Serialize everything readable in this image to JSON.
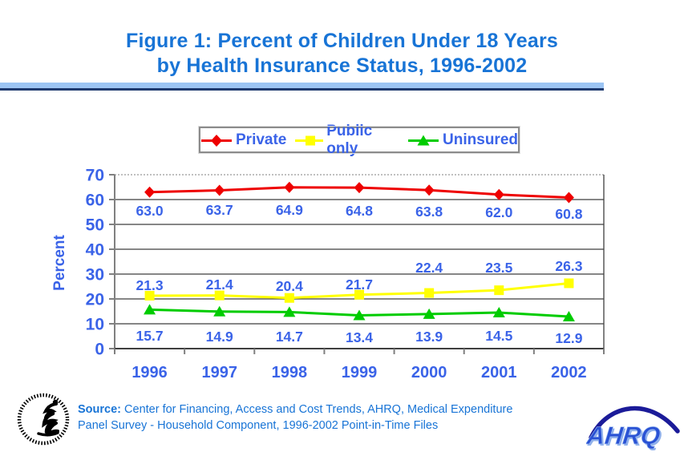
{
  "header": {
    "title_line1": "Figure 1: Percent of Children Under 18 Years",
    "title_line2": "by Health Insurance Status, 1996-2002"
  },
  "legend": {
    "items": [
      {
        "label": "Private"
      },
      {
        "label": "Public only"
      },
      {
        "label": "Uninsured"
      }
    ]
  },
  "chart_data": {
    "type": "line",
    "x": [
      1996,
      1997,
      1998,
      1999,
      2000,
      2001,
      2002
    ],
    "series": [
      {
        "name": "Private",
        "color": "#EE0000",
        "marker": "diamond",
        "values": [
          63.0,
          63.7,
          64.9,
          64.8,
          63.8,
          62.0,
          60.8
        ]
      },
      {
        "name": "Public only",
        "color": "#FFFF00",
        "marker": "square",
        "values": [
          21.3,
          21.4,
          20.4,
          21.7,
          22.4,
          23.5,
          26.3
        ]
      },
      {
        "name": "Uninsured",
        "color": "#00CC00",
        "marker": "triangle",
        "values": [
          15.7,
          14.9,
          14.7,
          13.4,
          13.9,
          14.5,
          12.9
        ]
      }
    ],
    "title": "Figure 1: Percent of Children Under 18 Years by Health Insurance Status, 1996-2002",
    "xlabel": "",
    "ylabel": "Percent",
    "ylim": [
      0,
      70
    ],
    "ytick_step": 10,
    "grid": true,
    "legend_position": "top",
    "data_labels_decimals": 1
  },
  "source": {
    "label": "Source:",
    "line1": " Center for Financing, Access and Cost Trends, AHRQ, Medical Expenditure",
    "line2": "Panel Survey - Household Component, 1996-2002 Point-in-Time Files"
  },
  "footer": {
    "ahrq_text": "AHRQ"
  },
  "colors": {
    "title_blue": "#1874D6",
    "label_blue": "#3A63E8",
    "divider_light": "#9CC5F4",
    "divider_dark": "#1E3A6E",
    "gridline": "#3F3F3F",
    "gridline_top": "#9A9A9A",
    "axis": "#808080"
  }
}
